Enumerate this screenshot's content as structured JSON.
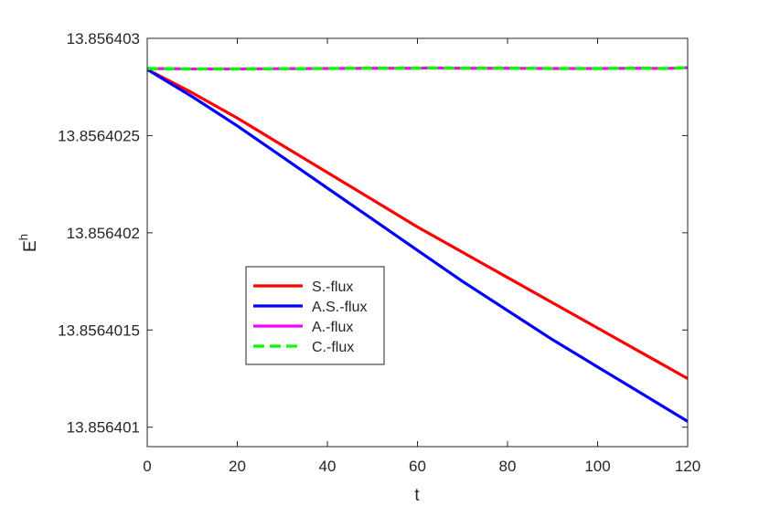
{
  "chart_data": {
    "type": "line",
    "title": "",
    "xlabel": "t",
    "ylabel": "E",
    "ylabel_superscript": "h",
    "xlim": [
      0,
      120
    ],
    "ylim": [
      13.8564009,
      13.856403
    ],
    "xticks": [
      0,
      20,
      40,
      60,
      80,
      100,
      120
    ],
    "xtick_labels": [
      "0",
      "20",
      "40",
      "60",
      "80",
      "100",
      "120"
    ],
    "yticks": [
      13.856401,
      13.8564015,
      13.856402,
      13.8564025,
      13.856403
    ],
    "ytick_labels": [
      "13.856401",
      "13.8564015",
      "13.856402",
      "13.8564025",
      "13.856403"
    ],
    "grid": false,
    "legend_position": "lower-left",
    "series": [
      {
        "name": "S.-flux",
        "color": "#ff0000",
        "style": "solid",
        "x": [
          0,
          10,
          20,
          30,
          40,
          50,
          60,
          70,
          80,
          90,
          100,
          110,
          120
        ],
        "y": [
          13.85640284,
          13.85640272,
          13.85640259,
          13.85640245,
          13.85640231,
          13.85640217,
          13.85640203,
          13.8564019,
          13.85640177,
          13.85640164,
          13.85640151,
          13.85640138,
          13.85640125
        ]
      },
      {
        "name": "A.S.-flux",
        "color": "#0000ff",
        "style": "solid",
        "x": [
          0,
          10,
          20,
          30,
          40,
          50,
          60,
          70,
          80,
          90,
          100,
          110,
          120
        ],
        "y": [
          13.85640284,
          13.8564027,
          13.85640255,
          13.85640239,
          13.85640223,
          13.85640207,
          13.85640191,
          13.85640175,
          13.8564016,
          13.85640145,
          13.85640131,
          13.85640117,
          13.85640103
        ]
      },
      {
        "name": "A.-flux",
        "color": "#ff00ff",
        "style": "solid",
        "x": [
          0,
          10,
          20,
          30,
          40,
          50,
          60,
          62,
          70,
          80,
          90,
          100,
          110,
          115,
          120
        ],
        "y": [
          13.856402845,
          13.856402843,
          13.856402843,
          13.856402844,
          13.856402845,
          13.856402846,
          13.856402846,
          13.856402848,
          13.856402846,
          13.856402846,
          13.856402845,
          13.856402845,
          13.856402846,
          13.856402845,
          13.856402849
        ]
      },
      {
        "name": "C.-flux",
        "color": "#00ff00",
        "style": "dashed",
        "x": [
          0,
          10,
          20,
          30,
          40,
          50,
          60,
          62,
          70,
          80,
          90,
          100,
          110,
          115,
          120
        ],
        "y": [
          13.856402845,
          13.856402843,
          13.856402843,
          13.856402844,
          13.856402845,
          13.856402846,
          13.856402846,
          13.856402848,
          13.856402846,
          13.856402846,
          13.856402845,
          13.856402845,
          13.856402846,
          13.856402845,
          13.856402849
        ]
      }
    ]
  }
}
